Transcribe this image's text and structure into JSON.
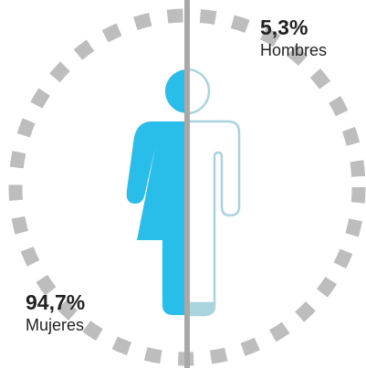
{
  "chart_data": {
    "type": "pictogram",
    "categories": [
      "Mujeres",
      "Hombres"
    ],
    "values": [
      94.7,
      5.3
    ],
    "value_labels": [
      "94,7%",
      "5,3%"
    ],
    "colors": [
      "#29bde9",
      "#a9d3de"
    ]
  }
}
